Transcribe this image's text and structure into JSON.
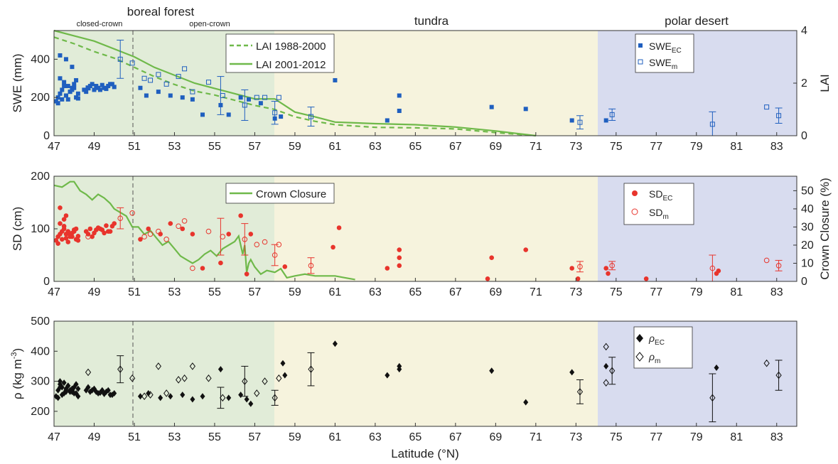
{
  "colors": {
    "forest_bg": "#e1ecd8",
    "tundra_bg": "#f6f3dd",
    "desert_bg": "#d8dcef",
    "lai": "#6fb94a",
    "swe": "#1f5fbf",
    "sd": "#e8342c",
    "rho": "#111111"
  },
  "zones": {
    "boreal": "boreal forest",
    "closed": "closed-crown",
    "open": "open-crown",
    "tundra": "tundra",
    "desert": "polar desert"
  },
  "xaxis": {
    "label": "Latitude (°N)",
    "ticks": [
      "47",
      "49",
      "51",
      "53",
      "55",
      "57",
      "59",
      "61",
      "63",
      "65",
      "67",
      "69",
      "71",
      "73",
      "75",
      "77",
      "79",
      "81",
      "83"
    ]
  },
  "chart_data": [
    {
      "type": "scatter",
      "ylabel": "SWE (mm)",
      "y2label": "LAI",
      "xlim": [
        47,
        84
      ],
      "ylim": [
        0,
        550
      ],
      "y2lim": [
        0,
        4
      ],
      "yticks": [
        "0",
        "200",
        "400"
      ],
      "y2ticks": [
        "0",
        "2",
        "4"
      ],
      "legend_lai": [
        "LAI 1988-2000",
        "LAI 2001-2012"
      ],
      "legend_pts": {
        "ec_base": "SWE",
        "ec_sub": "EC",
        "m_base": "SWE",
        "m_sub": "m"
      },
      "series": [
        {
          "name": "LAI 1988-2000",
          "axis": "right",
          "style": "dashed",
          "x": [
            47,
            48,
            49,
            50,
            51,
            52,
            53,
            54,
            55,
            56,
            57,
            58,
            59,
            60,
            61,
            63,
            65,
            67,
            69,
            71
          ],
          "y": [
            3.75,
            3.5,
            3.2,
            2.95,
            2.6,
            2.25,
            1.95,
            1.7,
            1.55,
            1.35,
            1.15,
            1.0,
            0.72,
            0.55,
            0.42,
            0.32,
            0.3,
            0.26,
            0.12,
            0.0
          ]
        },
        {
          "name": "LAI 2001-2012",
          "axis": "right",
          "style": "solid",
          "x": [
            47,
            48,
            49,
            50,
            51,
            52,
            53,
            54,
            55,
            56,
            57,
            58,
            59,
            60,
            61,
            63,
            65,
            67,
            69,
            71
          ],
          "y": [
            4.0,
            3.8,
            3.6,
            3.3,
            3.0,
            2.6,
            2.3,
            2.0,
            1.8,
            1.6,
            1.4,
            1.4,
            0.9,
            0.72,
            0.52,
            0.46,
            0.42,
            0.33,
            0.18,
            0.0
          ]
        },
        {
          "name": "SWE_EC",
          "axis": "left",
          "marker": "filled-square",
          "x": [
            47.1,
            47.2,
            47.3,
            47.4,
            47.5,
            47.6,
            47.7,
            47.8,
            47.9,
            48.0,
            48.1,
            48.2,
            47.3,
            47.5,
            47.7,
            47.9,
            48.1,
            47.2,
            47.4,
            47.6,
            47.8,
            48.0,
            48.2,
            47.3,
            47.6,
            47.9,
            48.5,
            48.7,
            48.9,
            49.1,
            49.3,
            49.5,
            49.7,
            49.9,
            48.6,
            48.8,
            49.0,
            49.2,
            49.4,
            49.6,
            49.8,
            50.0,
            51.3,
            51.6,
            52.2,
            52.8,
            53.4,
            53.9,
            54.4,
            55.3,
            55.7,
            56.3,
            56.7,
            57.3,
            58.0,
            58.3,
            61.0,
            63.6,
            64.2,
            64.2,
            68.8,
            70.5,
            72.8,
            74.5
          ],
          "y": [
            180,
            200,
            220,
            240,
            260,
            210,
            190,
            230,
            250,
            270,
            200,
            220,
            300,
            280,
            260,
            240,
            290,
            170,
            190,
            210,
            230,
            250,
            195,
            420,
            400,
            360,
            240,
            250,
            270,
            260,
            240,
            250,
            260,
            270,
            230,
            260,
            240,
            250,
            265,
            245,
            270,
            255,
            250,
            210,
            230,
            210,
            200,
            190,
            110,
            160,
            110,
            200,
            190,
            170,
            90,
            100,
            290,
            80,
            130,
            210,
            150,
            140,
            80,
            80
          ]
        },
        {
          "name": "SWE_m",
          "axis": "left",
          "marker": "open-square",
          "x": [
            48.7,
            50.3,
            50.9,
            51.5,
            51.8,
            52.2,
            52.6,
            53.2,
            53.5,
            53.9,
            54.7,
            55.4,
            56.5,
            57.1,
            57.5,
            58.0,
            58.2,
            59.8,
            73.2,
            74.8,
            79.8,
            82.5,
            83.1
          ],
          "y": [
            250,
            400,
            380,
            300,
            290,
            320,
            270,
            310,
            350,
            230,
            280,
            210,
            160,
            200,
            200,
            120,
            200,
            100,
            70,
            110,
            60,
            150,
            105
          ]
        }
      ],
      "errorbars": [
        [
          50.3,
          400,
          100
        ],
        [
          55.3,
          210,
          100
        ],
        [
          56.5,
          160,
          80
        ],
        [
          58.0,
          120,
          60
        ],
        [
          59.8,
          100,
          50
        ],
        [
          73.2,
          70,
          35
        ],
        [
          74.8,
          110,
          30
        ],
        [
          79.8,
          60,
          65
        ],
        [
          83.1,
          105,
          40
        ]
      ]
    },
    {
      "type": "scatter",
      "ylabel": "SD (cm)",
      "y2label": "Crown Closure (%)",
      "xlim": [
        47,
        84
      ],
      "ylim": [
        0,
        200
      ],
      "y2lim": [
        0,
        58
      ],
      "yticks": [
        "0",
        "100",
        "200"
      ],
      "y2ticks": [
        "0",
        "10",
        "20",
        "30",
        "40",
        "50"
      ],
      "legend_cc": "Crown Closure",
      "legend_pts": {
        "ec_base": "SD",
        "ec_sub": "EC",
        "m_base": "SD",
        "m_sub": "m"
      },
      "series": [
        {
          "name": "Crown Closure",
          "axis": "right",
          "style": "solid",
          "x": [
            47.0,
            47.4,
            47.8,
            48.0,
            48.3,
            48.6,
            48.9,
            49.2,
            49.5,
            49.8,
            50.0,
            50.3,
            50.6,
            50.9,
            51.2,
            51.5,
            51.8,
            52.1,
            52.4,
            52.7,
            53.0,
            53.3,
            53.6,
            53.9,
            54.2,
            54.5,
            54.8,
            55.1,
            55.4,
            55.7,
            56.0,
            56.2,
            56.4,
            56.5,
            56.6,
            56.7,
            56.8,
            57.0,
            57.3,
            57.6,
            58.0,
            58.3,
            58.6,
            59.0,
            59.5,
            60.0,
            60.5,
            61.0,
            61.5,
            62.0
          ],
          "y": [
            53,
            52,
            55,
            55,
            50,
            48,
            45,
            48,
            46,
            43,
            40,
            38,
            36,
            30,
            30,
            26,
            28,
            24,
            20,
            22,
            18,
            14,
            12,
            10,
            12,
            15,
            17,
            14,
            18,
            20,
            22,
            25,
            15,
            20,
            5,
            10,
            12,
            8,
            4,
            6,
            5,
            7,
            2,
            3,
            4,
            3,
            3,
            3,
            2,
            1
          ]
        },
        {
          "name": "SD_EC",
          "axis": "left",
          "marker": "filled-circle",
          "x": [
            47.1,
            47.2,
            47.3,
            47.4,
            47.5,
            47.6,
            47.7,
            47.8,
            47.9,
            48.0,
            48.1,
            48.2,
            47.3,
            47.5,
            47.7,
            47.9,
            48.1,
            47.2,
            47.4,
            47.6,
            47.8,
            48.0,
            48.2,
            47.3,
            47.6,
            47.5,
            48.6,
            48.8,
            49.0,
            49.2,
            49.4,
            49.6,
            49.8,
            50.0,
            48.7,
            48.9,
            49.1,
            49.3,
            49.5,
            49.7,
            49.9,
            51.3,
            51.7,
            52.3,
            52.8,
            53.4,
            53.9,
            54.4,
            55.3,
            55.7,
            56.3,
            56.6,
            56.8,
            58.5,
            60.9,
            61.2,
            63.6,
            64.2,
            64.2,
            64.2,
            68.6,
            68.8,
            70.5,
            72.8,
            73.1,
            74.5,
            74.6,
            76.5,
            80.0,
            80.1
          ],
          "y": [
            78,
            85,
            90,
            95,
            100,
            82,
            75,
            88,
            92,
            98,
            80,
            86,
            110,
            105,
            95,
            85,
            100,
            72,
            80,
            90,
            85,
            95,
            78,
            140,
            125,
            118,
            95,
            100,
            92,
            102,
            98,
            106,
            95,
            110,
            90,
            85,
            98,
            100,
            92,
            95,
            105,
            80,
            100,
            90,
            110,
            100,
            90,
            25,
            35,
            90,
            125,
            14,
            90,
            28,
            65,
            102,
            25,
            30,
            45,
            60,
            5,
            45,
            60,
            25,
            5,
            25,
            15,
            5,
            15,
            20
          ]
        },
        {
          "name": "SD_m",
          "axis": "left",
          "marker": "open-circle",
          "x": [
            48.7,
            50.3,
            50.9,
            51.5,
            51.8,
            52.2,
            52.6,
            53.2,
            53.5,
            53.9,
            54.7,
            55.4,
            56.5,
            57.1,
            57.5,
            58.0,
            58.2,
            59.8,
            73.2,
            74.8,
            79.8,
            82.5,
            83.1
          ],
          "y": [
            85,
            120,
            130,
            85,
            90,
            95,
            80,
            105,
            115,
            25,
            95,
            85,
            80,
            70,
            75,
            50,
            70,
            30,
            28,
            30,
            25,
            40,
            30
          ]
        }
      ],
      "errorbars": [
        [
          50.3,
          120,
          20
        ],
        [
          55.3,
          85,
          35
        ],
        [
          56.5,
          80,
          30
        ],
        [
          58.0,
          50,
          20
        ],
        [
          59.8,
          30,
          15
        ],
        [
          73.2,
          28,
          10
        ],
        [
          74.8,
          30,
          8
        ],
        [
          79.8,
          25,
          25
        ],
        [
          83.1,
          30,
          10
        ]
      ]
    },
    {
      "type": "scatter",
      "ylabel_base": "ρ (kg m",
      "ylabel_sup": "-3",
      "ylabel_end": ")",
      "xlim": [
        47,
        84
      ],
      "ylim": [
        150,
        500
      ],
      "yticks": [
        "200",
        "300",
        "400",
        "500"
      ],
      "legend_pts": {
        "ec_base": "ρ",
        "ec_sub": "EC",
        "m_base": "ρ",
        "m_sub": "m"
      },
      "series": [
        {
          "name": "rho_EC",
          "axis": "left",
          "marker": "filled-diamond",
          "x": [
            47.1,
            47.2,
            47.3,
            47.4,
            47.5,
            47.6,
            47.7,
            47.8,
            47.9,
            48.0,
            48.1,
            48.2,
            47.3,
            47.5,
            47.7,
            47.9,
            48.1,
            47.2,
            47.4,
            47.6,
            47.8,
            48.0,
            48.2,
            47.3,
            47.6,
            47.9,
            48.6,
            48.8,
            49.0,
            49.2,
            49.4,
            49.6,
            49.8,
            50.0,
            48.7,
            48.9,
            49.1,
            49.3,
            49.5,
            49.7,
            49.9,
            51.3,
            51.7,
            52.3,
            52.8,
            53.4,
            53.9,
            54.4,
            55.3,
            55.7,
            56.3,
            56.6,
            56.8,
            58.5,
            58.4,
            61.0,
            63.6,
            64.2,
            64.2,
            68.8,
            70.5,
            72.8,
            74.5,
            80.0
          ],
          "y": [
            250,
            270,
            290,
            280,
            260,
            275,
            285,
            265,
            270,
            280,
            260,
            275,
            300,
            295,
            285,
            275,
            290,
            245,
            255,
            265,
            270,
            260,
            250,
            280,
            270,
            265,
            270,
            265,
            275,
            260,
            270,
            265,
            255,
            260,
            280,
            270,
            265,
            262,
            258,
            270,
            255,
            250,
            260,
            245,
            250,
            255,
            240,
            250,
            340,
            245,
            255,
            240,
            225,
            320,
            360,
            425,
            320,
            350,
            340,
            335,
            230,
            330,
            350,
            345
          ]
        },
        {
          "name": "rho_m",
          "axis": "left",
          "marker": "open-diamond",
          "x": [
            48.7,
            50.3,
            50.9,
            51.5,
            51.8,
            52.2,
            52.6,
            53.2,
            53.5,
            53.9,
            54.7,
            55.4,
            56.5,
            57.1,
            57.5,
            58.0,
            58.2,
            59.8,
            73.2,
            74.8,
            74.5,
            74.5,
            79.8,
            82.5,
            83.1
          ],
          "y": [
            330,
            340,
            310,
            250,
            255,
            350,
            260,
            305,
            310,
            350,
            310,
            245,
            300,
            260,
            300,
            245,
            310,
            340,
            265,
            335,
            415,
            295,
            245,
            360,
            320
          ]
        }
      ],
      "errorbars": [
        [
          50.3,
          340,
          45
        ],
        [
          55.3,
          245,
          35
        ],
        [
          56.5,
          300,
          50
        ],
        [
          58.0,
          245,
          25
        ],
        [
          59.8,
          340,
          55
        ],
        [
          73.2,
          265,
          40
        ],
        [
          74.8,
          335,
          45
        ],
        [
          79.8,
          245,
          80
        ],
        [
          83.1,
          320,
          50
        ]
      ]
    }
  ]
}
